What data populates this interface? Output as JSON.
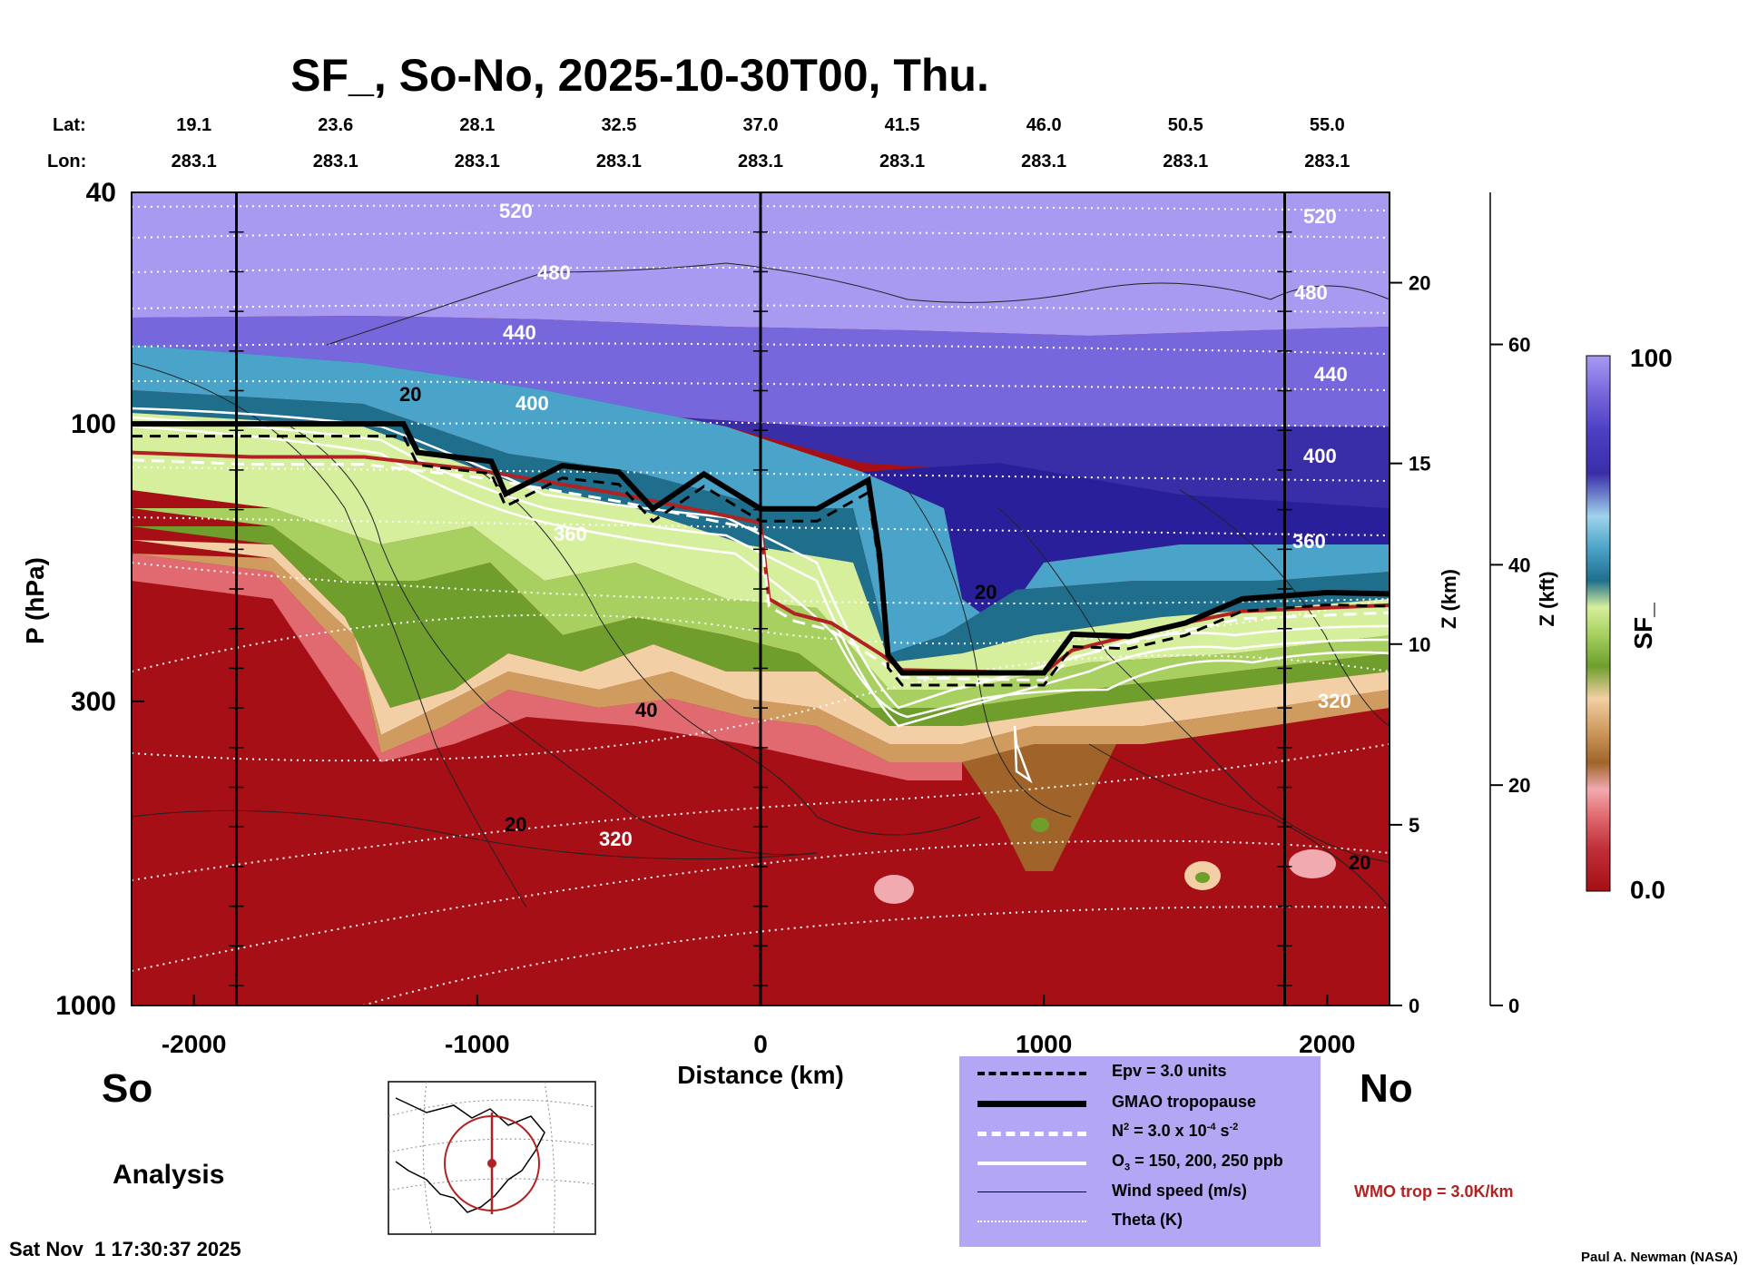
{
  "chart_data": {
    "type": "heatmap",
    "title": "SF_, So-No, 2025-10-30T00, Thu.",
    "xlabel": "Distance (km)",
    "ylabel": "P (hPa)",
    "y2label": "Z (km)",
    "y3label": "Z (kft)",
    "colorbar_label": "SF_",
    "colorbar_range": [
      0.0,
      100
    ],
    "colorbar_max_label": "100",
    "colorbar_min_label": "0.0",
    "xlim": [
      -2220,
      2220
    ],
    "x_ticks": [
      "-2000",
      "-1000",
      "0",
      "1000",
      "2000"
    ],
    "x_tick_values": [
      -2000,
      -1000,
      0,
      1000,
      2000
    ],
    "ylim_hpa": [
      1000,
      40
    ],
    "y_ticks": [
      "40",
      "100",
      "300",
      "1000"
    ],
    "y_tick_values": [
      40,
      100,
      300,
      1000
    ],
    "z_km_ticks": [
      "20",
      "15",
      "10",
      "5",
      "0"
    ],
    "z_km_values": [
      20,
      15,
      10,
      5,
      0
    ],
    "z_kft_ticks": [
      "60",
      "40",
      "20",
      "0"
    ],
    "z_kft_values": [
      60,
      40,
      20,
      0
    ],
    "lat_label": "Lat:",
    "lon_label": "Lon:",
    "lat_values": [
      "19.1",
      "23.6",
      "28.1",
      "32.5",
      "37.0",
      "41.5",
      "46.0",
      "50.5",
      "55.0"
    ],
    "lon_values": [
      "283.1",
      "283.1",
      "283.1",
      "283.1",
      "283.1",
      "283.1",
      "283.1",
      "283.1",
      "283.1"
    ],
    "lat_positions_km": [
      -2000,
      -1500,
      -1000,
      -500,
      0,
      500,
      1000,
      1500,
      2000
    ],
    "vertical_lines_km": [
      -1850,
      0,
      1850
    ],
    "colorscale": [
      "#a50f15",
      "#c0303a",
      "#e06a70",
      "#f1aab0",
      "#a0642a",
      "#cf9b5e",
      "#f2cfa4",
      "#6f9e2d",
      "#a7d060",
      "#d6ef9d",
      "#1f6e8c",
      "#4aa3c8",
      "#9fd3ec",
      "#3a2ea8",
      "#4d3fc4",
      "#7767dc",
      "#a79af0"
    ],
    "gmao_tropopause_hpa": [
      [
        -2220,
        100
      ],
      [
        -1260,
        100
      ],
      [
        -1210,
        112
      ],
      [
        -950,
        116
      ],
      [
        -900,
        132
      ],
      [
        -700,
        118
      ],
      [
        -500,
        121
      ],
      [
        -380,
        140
      ],
      [
        -200,
        122
      ],
      [
        0,
        140
      ],
      [
        200,
        140
      ],
      [
        380,
        125
      ],
      [
        420,
        168
      ],
      [
        450,
        250
      ],
      [
        500,
        268
      ],
      [
        1000,
        268
      ],
      [
        1100,
        230
      ],
      [
        1300,
        232
      ],
      [
        1500,
        220
      ],
      [
        1700,
        200
      ],
      [
        2000,
        195
      ],
      [
        2220,
        196
      ]
    ],
    "wmo_tropopause_hpa": [
      [
        -2220,
        112
      ],
      [
        -1800,
        114
      ],
      [
        -1400,
        114
      ],
      [
        -1000,
        120
      ],
      [
        -500,
        132
      ],
      [
        0,
        148
      ],
      [
        30,
        200
      ],
      [
        120,
        212
      ],
      [
        250,
        220
      ],
      [
        430,
        250
      ],
      [
        500,
        265
      ],
      [
        1000,
        268
      ],
      [
        1100,
        245
      ],
      [
        1400,
        225
      ],
      [
        1700,
        210
      ],
      [
        2220,
        205
      ]
    ],
    "theta_labels": [
      "520",
      "480",
      "440",
      "400",
      "360",
      "320",
      "520",
      "480",
      "440",
      "400",
      "360",
      "320"
    ],
    "wind_labels": [
      "20",
      "40",
      "20",
      "20",
      "20"
    ],
    "site_left": "So",
    "site_right": "No",
    "analysis_label": "Analysis",
    "timestamp": "Sat Nov  1 17:30:37 2025",
    "credit": "Paul A. Newman (NASA)",
    "wmo_note": "WMO trop = 3.0K/km",
    "legend": [
      {
        "style": "dashed-thick",
        "label": "Epv = 3.0 units"
      },
      {
        "style": "solid-thick",
        "label": "GMAO tropopause"
      },
      {
        "style": "white-dashed",
        "label_main": "N",
        "label_sup": "2",
        "label_rest": " = 3.0 x 10",
        "label_sup2": "-4",
        "label_end": " s",
        "label_sup3": "-2"
      },
      {
        "style": "white-solid",
        "label_main": "O",
        "label_sub": "3",
        "label_rest": " = 150, 200, 250 ppb"
      },
      {
        "style": "thin-solid",
        "label": "Wind speed (m/s)"
      },
      {
        "style": "dotted",
        "label": "Theta (K)"
      }
    ]
  }
}
